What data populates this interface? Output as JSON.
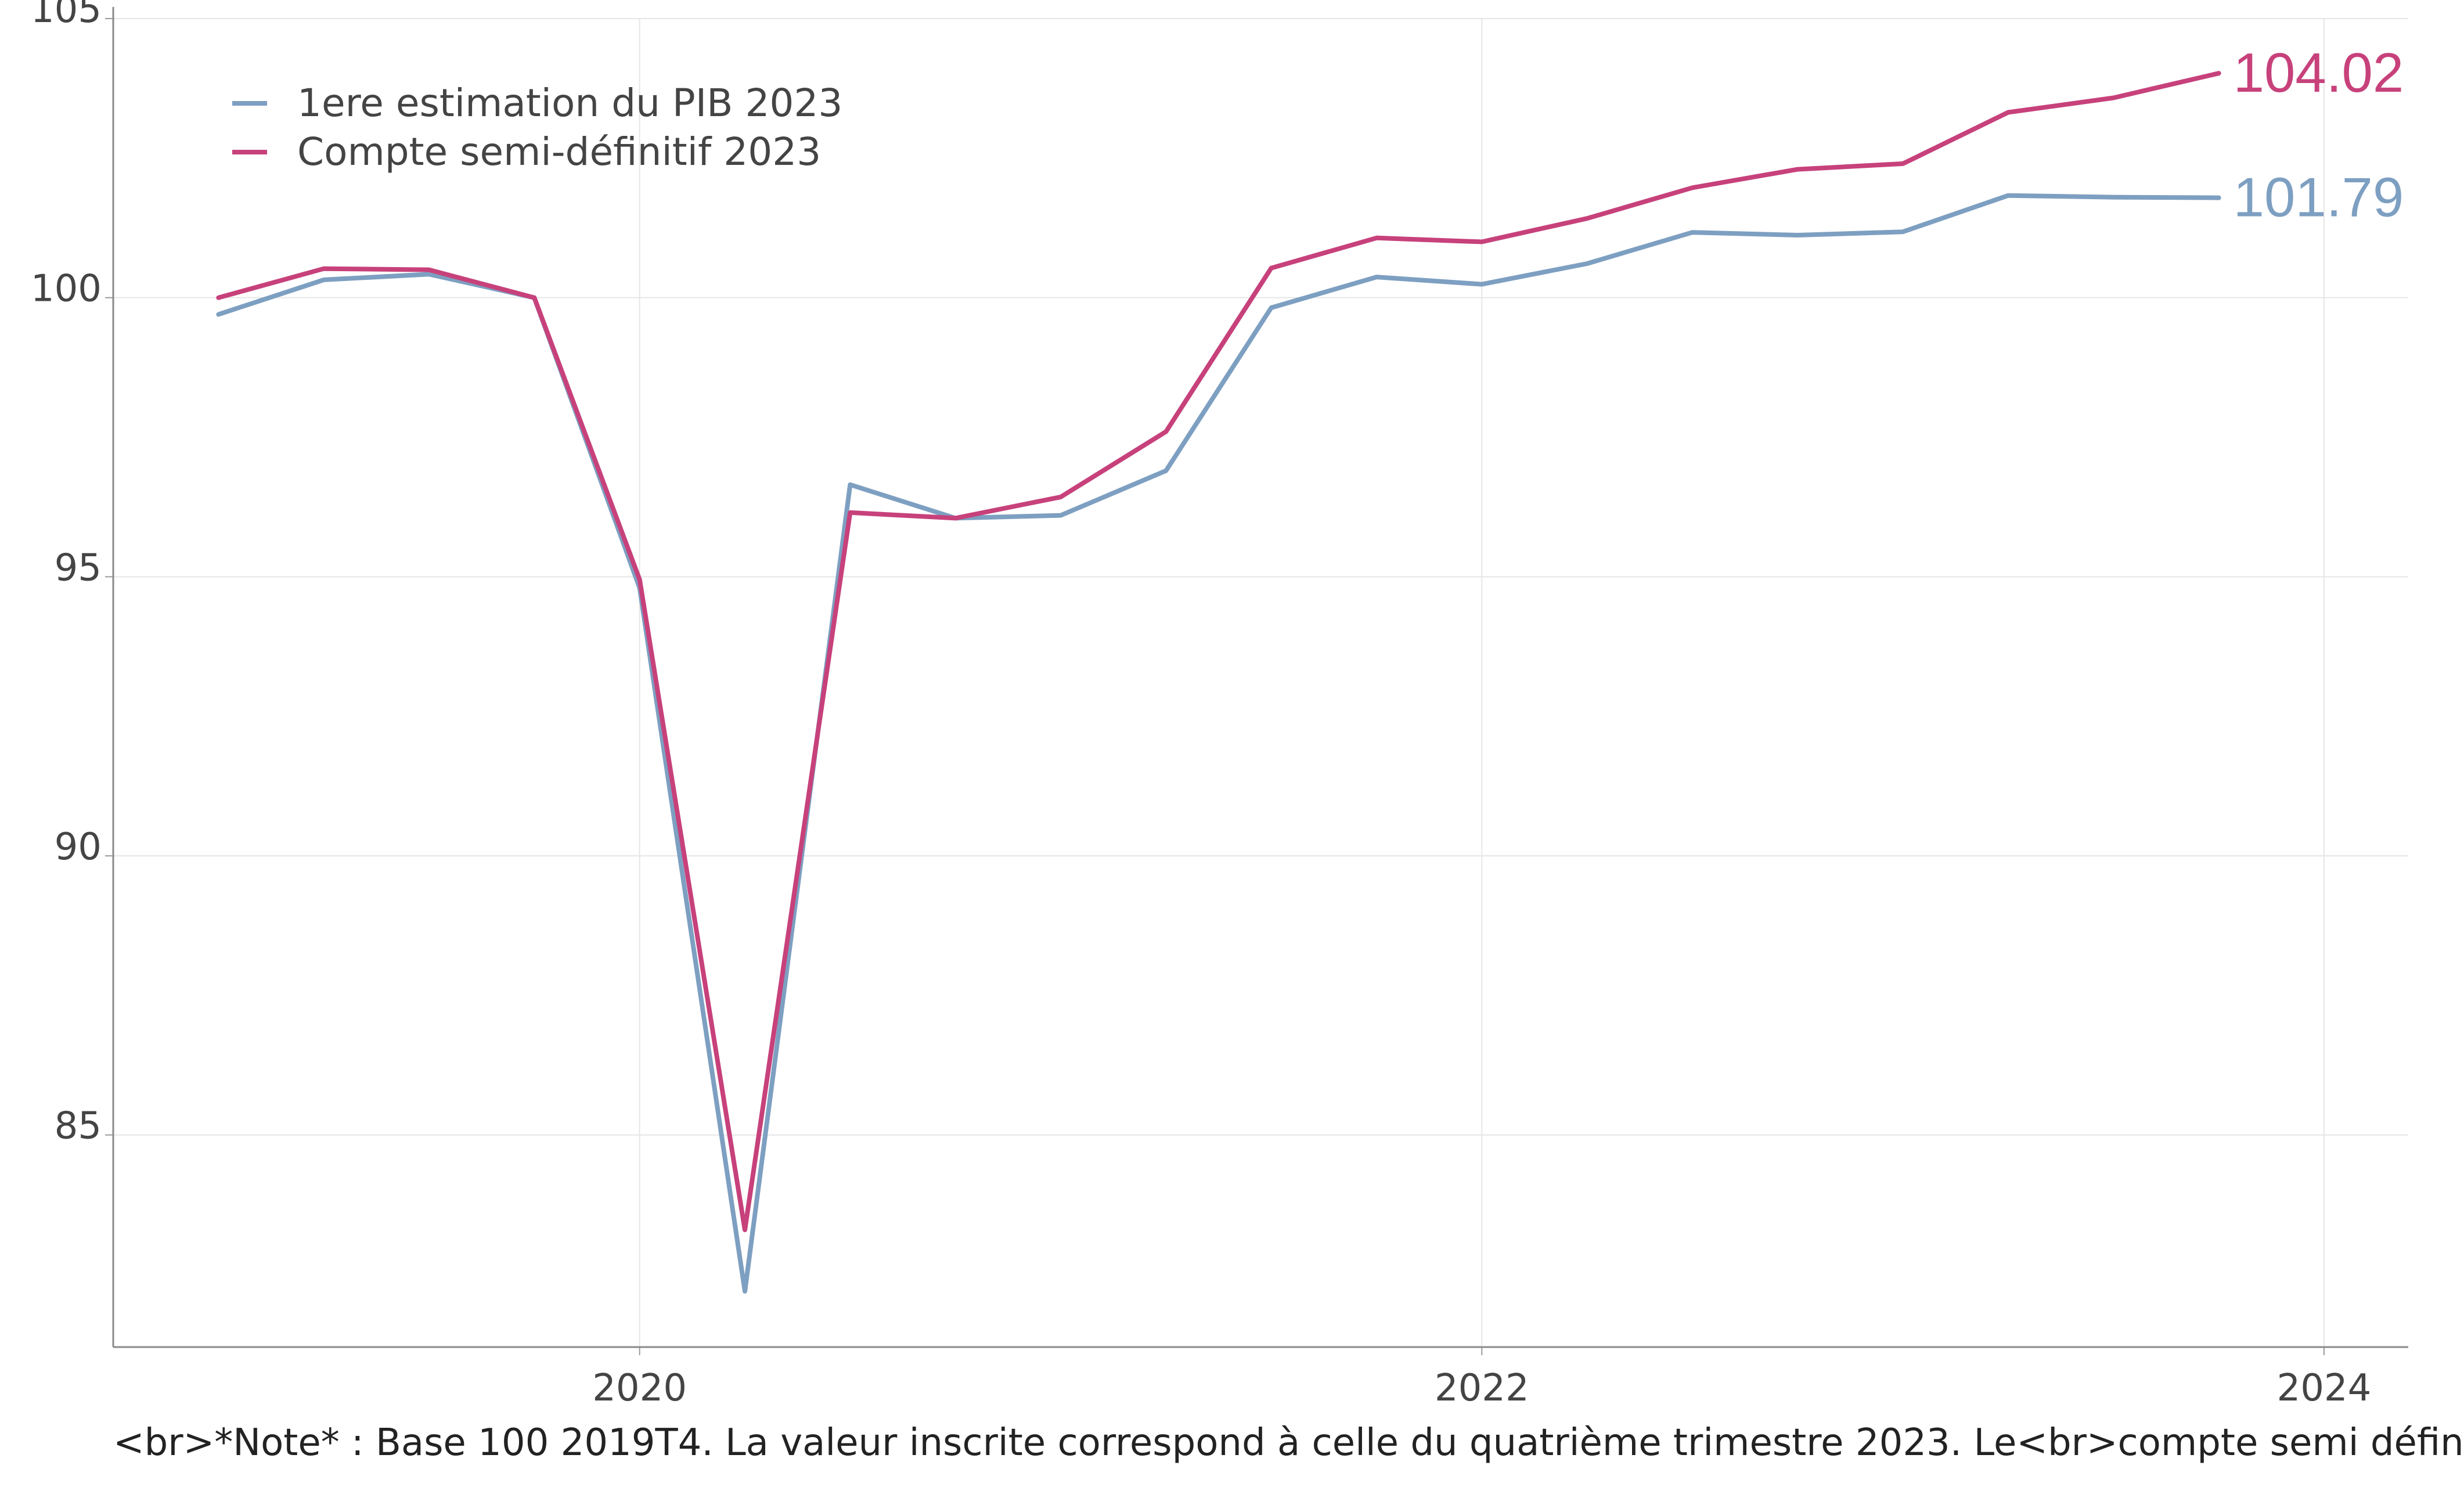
{
  "chart_data": {
    "type": "line",
    "title": "",
    "xlabel": "",
    "ylabel": "",
    "x": [
      "2019T1",
      "2019T2",
      "2019T3",
      "2019T4",
      "2020T1",
      "2020T2",
      "2020T3",
      "2020T4",
      "2021T1",
      "2021T2",
      "2021T3",
      "2021T4",
      "2022T1",
      "2022T2",
      "2022T3",
      "2022T4",
      "2023T1",
      "2023T2",
      "2023T3",
      "2023T4"
    ],
    "x_numeric": [
      2019.0,
      2019.25,
      2019.5,
      2019.75,
      2020.0,
      2020.25,
      2020.5,
      2020.75,
      2021.0,
      2021.25,
      2021.5,
      2021.75,
      2022.0,
      2022.25,
      2022.5,
      2022.75,
      2023.0,
      2023.25,
      2023.5,
      2023.75
    ],
    "series": [
      {
        "name": "1ere estimation du PIB 2023",
        "color": "#7d9fc1",
        "values": [
          99.7,
          100.32,
          100.42,
          100.0,
          94.8,
          82.2,
          96.65,
          96.05,
          96.1,
          96.9,
          99.82,
          100.37,
          100.24,
          100.61,
          101.17,
          101.12,
          101.18,
          101.83,
          101.8,
          101.79
        ],
        "end_label": "101.79"
      },
      {
        "name": "Compte semi-définitif 2023",
        "color": "#c7417b",
        "values": [
          100.0,
          100.52,
          100.5,
          100.0,
          94.95,
          83.3,
          96.15,
          96.05,
          96.43,
          97.6,
          100.53,
          101.07,
          101.0,
          101.42,
          101.97,
          102.3,
          102.4,
          103.32,
          103.58,
          104.02
        ],
        "end_label": "104.02"
      }
    ],
    "xlim": [
      2018.75,
      2024.2
    ],
    "ylim": [
      81.2,
      105
    ],
    "x_ticks": [
      {
        "value": 2020,
        "label": "2020"
      },
      {
        "value": 2022,
        "label": "2022"
      },
      {
        "value": 2024,
        "label": "2024"
      }
    ],
    "y_ticks": [
      {
        "value": 85,
        "label": "85"
      },
      {
        "value": 90,
        "label": "90"
      },
      {
        "value": 95,
        "label": "95"
      },
      {
        "value": 100,
        "label": "100"
      },
      {
        "value": 105,
        "label": "105"
      }
    ],
    "grid": true,
    "legend_position": "top-left",
    "note": "<br>*Note* : Base 100 2019T4. La valeur inscrite correspond à celle du quatrième trimestre 2023. Le<br>compte semi défin"
  }
}
